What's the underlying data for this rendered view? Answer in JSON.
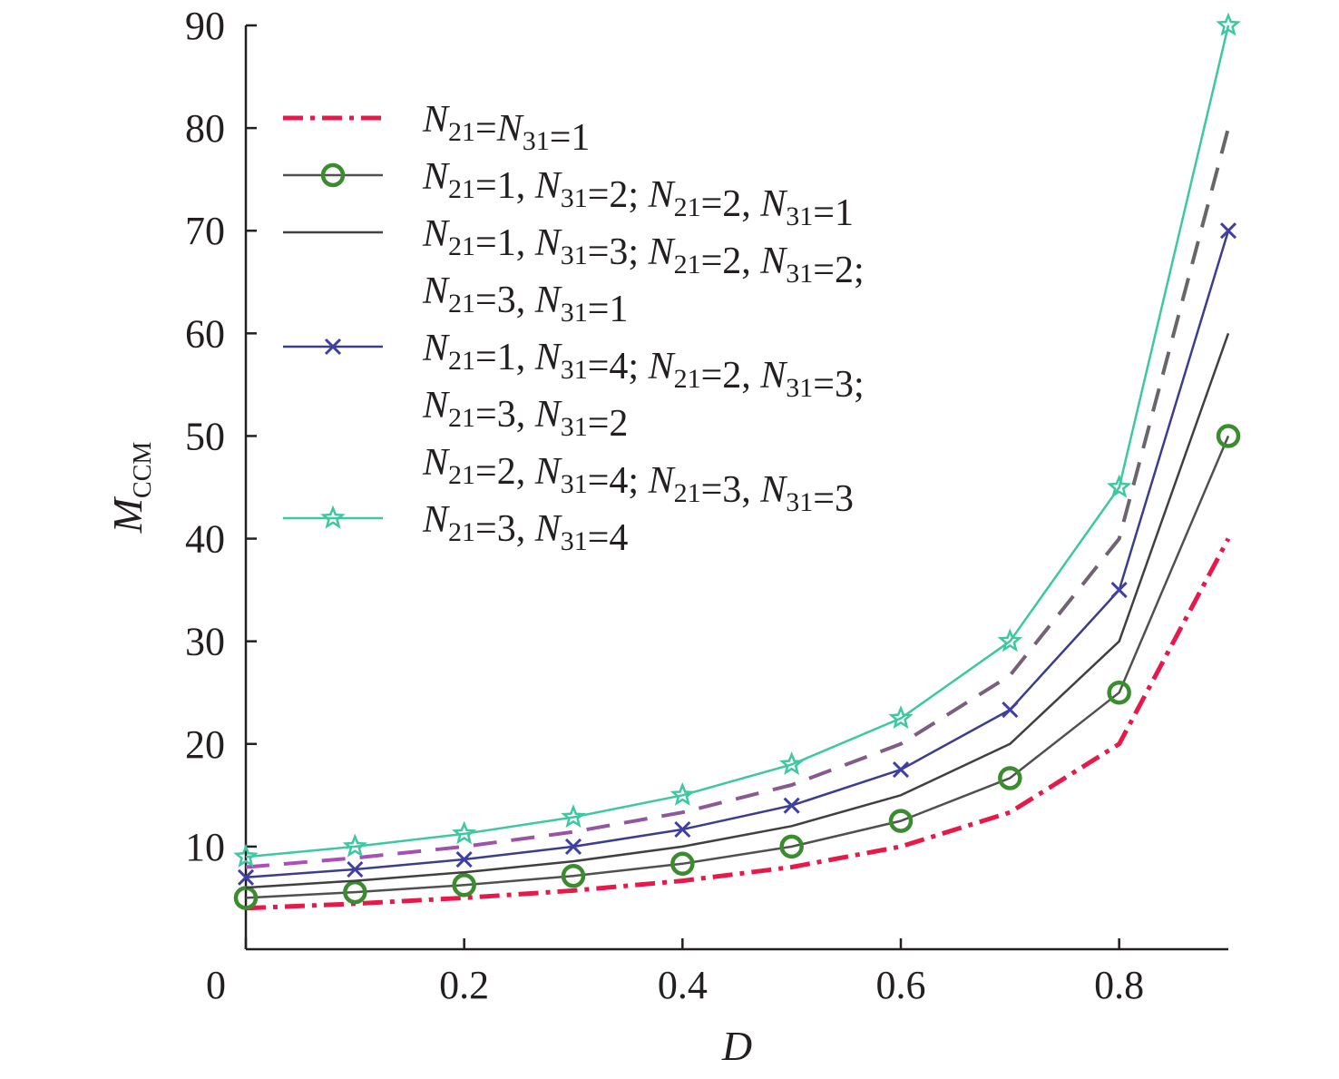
{
  "chart_data": {
    "type": "line",
    "xlabel": "D",
    "ylabel": {
      "main": "M",
      "sub": "CCM"
    },
    "xlim": [
      0,
      0.9
    ],
    "ylim": [
      0,
      90
    ],
    "x_ticks": [
      {
        "value": 0,
        "label": "0"
      },
      {
        "value": 0.2,
        "label": "0.2"
      },
      {
        "value": 0.4,
        "label": "0.4"
      },
      {
        "value": 0.6,
        "label": "0.6"
      },
      {
        "value": 0.8,
        "label": "0.8"
      }
    ],
    "y_ticks": [
      {
        "value": 10,
        "label": "10"
      },
      {
        "value": 20,
        "label": "20"
      },
      {
        "value": 30,
        "label": "30"
      },
      {
        "value": 40,
        "label": "40"
      },
      {
        "value": 50,
        "label": "50"
      },
      {
        "value": 60,
        "label": "60"
      },
      {
        "value": 70,
        "label": "70"
      },
      {
        "value": 80,
        "label": "80"
      },
      {
        "value": 90,
        "label": "90"
      }
    ],
    "x": [
      0,
      0.1,
      0.2,
      0.3,
      0.4,
      0.5,
      0.6,
      0.7,
      0.8,
      0.9
    ],
    "grid": false,
    "legend_position": "top-left",
    "series": [
      {
        "legend_lines": [
          [
            [
              "N",
              "21"
            ],
            [
              "=",
              ""
            ],
            [
              "N",
              "31"
            ],
            [
              "=1",
              ""
            ]
          ]
        ],
        "color": "#e6194b",
        "color2": "#e6194b",
        "dash": "dashdot",
        "marker": "none",
        "values": [
          4,
          4.44,
          5,
          5.71,
          6.67,
          8,
          10,
          13.33,
          20,
          40
        ]
      },
      {
        "legend_lines": [
          [
            [
              "N",
              "21"
            ],
            [
              "=1, ",
              ""
            ],
            [
              "N",
              "31"
            ],
            [
              "=2; ",
              ""
            ],
            [
              "N",
              "21"
            ],
            [
              "=2, ",
              ""
            ],
            [
              "N",
              "31"
            ],
            [
              "=1",
              ""
            ]
          ]
        ],
        "color": "#505050",
        "color2": "#505050",
        "marker_color": "#3a8c2f",
        "dash": "solid",
        "marker": "circle",
        "values": [
          5,
          5.56,
          6.25,
          7.14,
          8.33,
          10,
          12.5,
          16.67,
          25,
          50
        ]
      },
      {
        "legend_lines": [
          [
            [
              "N",
              "21"
            ],
            [
              "=1, ",
              ""
            ],
            [
              "N",
              "31"
            ],
            [
              "=3; ",
              ""
            ],
            [
              "N",
              "21"
            ],
            [
              "=2, ",
              ""
            ],
            [
              "N",
              "31"
            ],
            [
              "=2;",
              ""
            ]
          ],
          [
            [
              "N",
              "21"
            ],
            [
              "=3, ",
              ""
            ],
            [
              "N",
              "31"
            ],
            [
              "=1",
              ""
            ]
          ]
        ],
        "color": "#404040",
        "color2": "#404040",
        "dash": "solid",
        "marker": "none",
        "values": [
          6,
          6.67,
          7.5,
          8.57,
          10,
          12,
          15,
          20,
          30,
          60
        ]
      },
      {
        "legend_lines": [
          [
            [
              "N",
              "21"
            ],
            [
              "=1, ",
              ""
            ],
            [
              "N",
              "31"
            ],
            [
              "=4; ",
              ""
            ],
            [
              "N",
              "21"
            ],
            [
              "=2, ",
              ""
            ],
            [
              "N",
              "31"
            ],
            [
              "=3;",
              ""
            ]
          ],
          [
            [
              "N",
              "21"
            ],
            [
              "=3, ",
              ""
            ],
            [
              "N",
              "31"
            ],
            [
              "=2",
              ""
            ]
          ]
        ],
        "color": "#3d3d8f",
        "color2": "#3d3d8f",
        "marker_color": "#3f3fa6",
        "dash": "solid",
        "marker": "x",
        "values": [
          7,
          7.78,
          8.75,
          10,
          11.67,
          14,
          17.5,
          23.33,
          35,
          70
        ]
      },
      {
        "legend_lines": [
          [
            [
              "N",
              "21"
            ],
            [
              "=2, ",
              ""
            ],
            [
              "N",
              "31"
            ],
            [
              "=4; ",
              ""
            ],
            [
              "N",
              "21"
            ],
            [
              "=3, ",
              ""
            ],
            [
              "N",
              "31"
            ],
            [
              "=3",
              ""
            ]
          ]
        ],
        "color": "#b04cc0",
        "color2": "#666666",
        "dash": "dashed",
        "marker": "none",
        "values": [
          8,
          8.89,
          10,
          11.43,
          13.33,
          16,
          20,
          26.67,
          40,
          80
        ]
      },
      {
        "legend_lines": [
          [
            [
              "N",
              "21"
            ],
            [
              "=3, ",
              ""
            ],
            [
              "N",
              "31"
            ],
            [
              "=4",
              ""
            ]
          ]
        ],
        "color": "#3cc8a0",
        "color2": "#3cc8a0",
        "dash": "solid",
        "marker": "star",
        "values": [
          9,
          10,
          11.25,
          12.86,
          15,
          18,
          22.5,
          30,
          45,
          90
        ]
      }
    ]
  }
}
